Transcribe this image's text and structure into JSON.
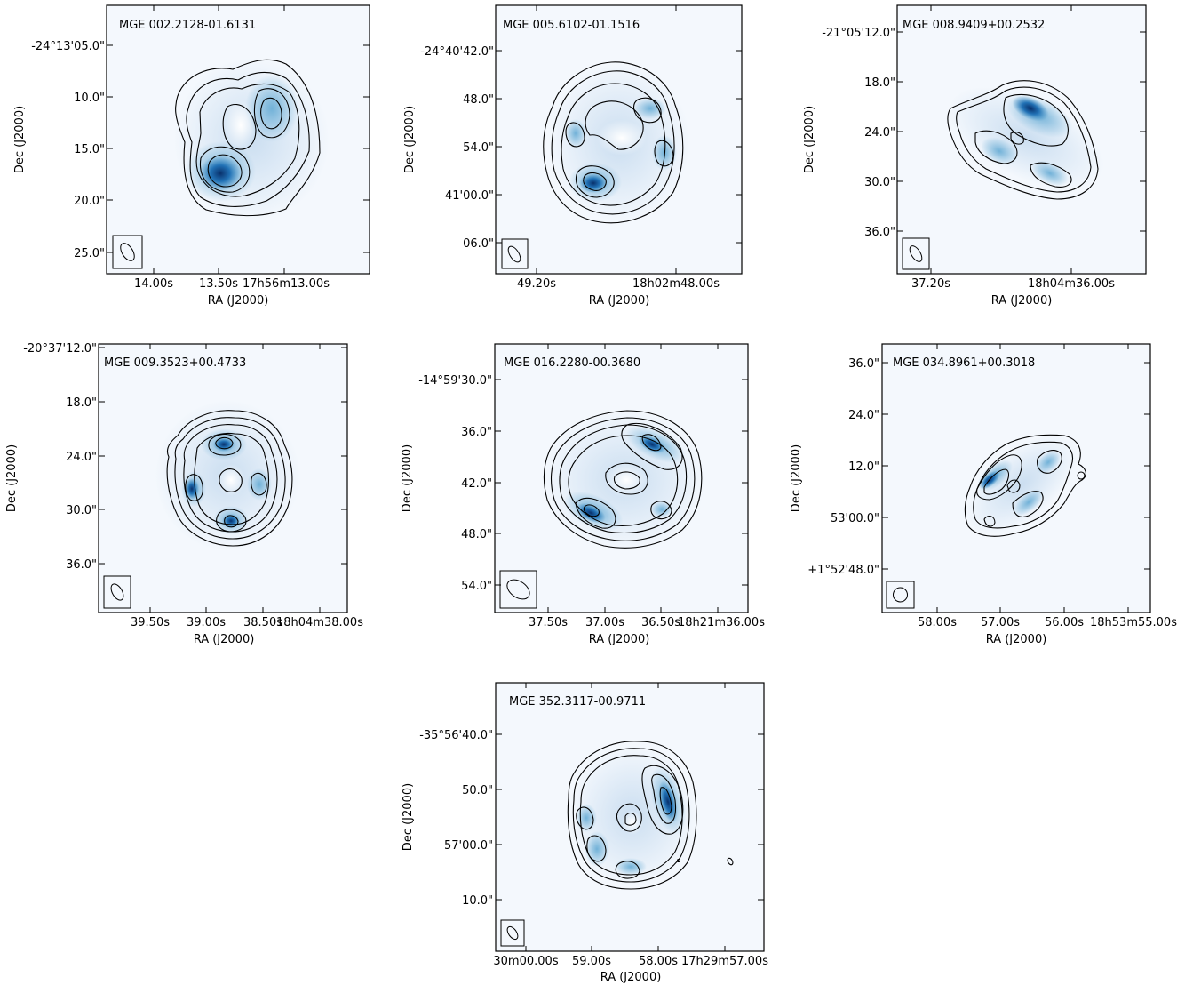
{
  "figure": {
    "panels": [
      {
        "title": "MGE 002.2128-01.6131",
        "x_ticks": [
          "14.00s",
          "13.50s",
          "17h56m13.00s"
        ],
        "y_ticks": [
          "-24°13'05.0\"",
          "10.0\"",
          "15.0\"",
          "20.0\"",
          "25.0\""
        ],
        "xlabel": "RA (J2000)",
        "ylabel": "Dec (J2000)"
      },
      {
        "title": "MGE 005.6102-01.1516",
        "x_ticks": [
          "49.20s",
          "18h02m48.00s"
        ],
        "y_ticks": [
          "-24°40'42.0\"",
          "48.0\"",
          "54.0\"",
          "41'00.0\"",
          "06.0\""
        ],
        "xlabel": "RA (J2000)",
        "ylabel": "Dec (J2000)"
      },
      {
        "title": "MGE 008.9409+00.2532",
        "x_ticks": [
          "37.20s",
          "18h04m36.00s"
        ],
        "y_ticks": [
          "-21°05'12.0\"",
          "18.0\"",
          "24.0\"",
          "30.0\"",
          "36.0\""
        ],
        "xlabel": "RA (J2000)",
        "ylabel": "Dec (J2000)"
      },
      {
        "title": "MGE 009.3523+00.4733",
        "x_ticks": [
          "39.50s",
          "39.00s",
          "38.50s",
          "18h04m38.00s"
        ],
        "y_ticks": [
          "-20°37'12.0\"",
          "18.0\"",
          "24.0\"",
          "30.0\"",
          "36.0\""
        ],
        "xlabel": "RA (J2000)",
        "ylabel": "Dec (J2000)"
      },
      {
        "title": "MGE 016.2280-00.3680",
        "x_ticks": [
          "37.50s",
          "37.00s",
          "36.50s",
          "18h21m36.00s"
        ],
        "y_ticks": [
          "-14°59'30.0\"",
          "36.0\"",
          "42.0\"",
          "48.0\"",
          "54.0\""
        ],
        "xlabel": "RA (J2000)",
        "ylabel": "Dec (J2000)"
      },
      {
        "title": "MGE 034.8961+00.3018",
        "x_ticks": [
          "58.00s",
          "57.00s",
          "56.00s",
          "18h53m55.00s"
        ],
        "y_ticks": [
          "36.0\"",
          "24.0\"",
          "12.0\"",
          "53'00.0\"",
          "+1°52'48.0\""
        ],
        "xlabel": "RA (J2000)",
        "ylabel": "Dec (J2000)"
      },
      {
        "title": "MGE 352.3117-00.9711",
        "x_ticks": [
          "30m00.00s",
          "59.00s",
          "58.00s",
          "17h29m57.00s"
        ],
        "y_ticks": [
          "-35°56'40.0\"",
          "50.0\"",
          "57'00.0\"",
          "10.0\""
        ],
        "xlabel": "RA (J2000)",
        "ylabel": "Dec (J2000)"
      }
    ],
    "colors": {
      "map_background": "#f4f8fd",
      "light": "#c6dbef",
      "mid": "#6baed6",
      "dark": "#2171b5",
      "darkest": "#08306b",
      "contour": "#000000"
    }
  }
}
